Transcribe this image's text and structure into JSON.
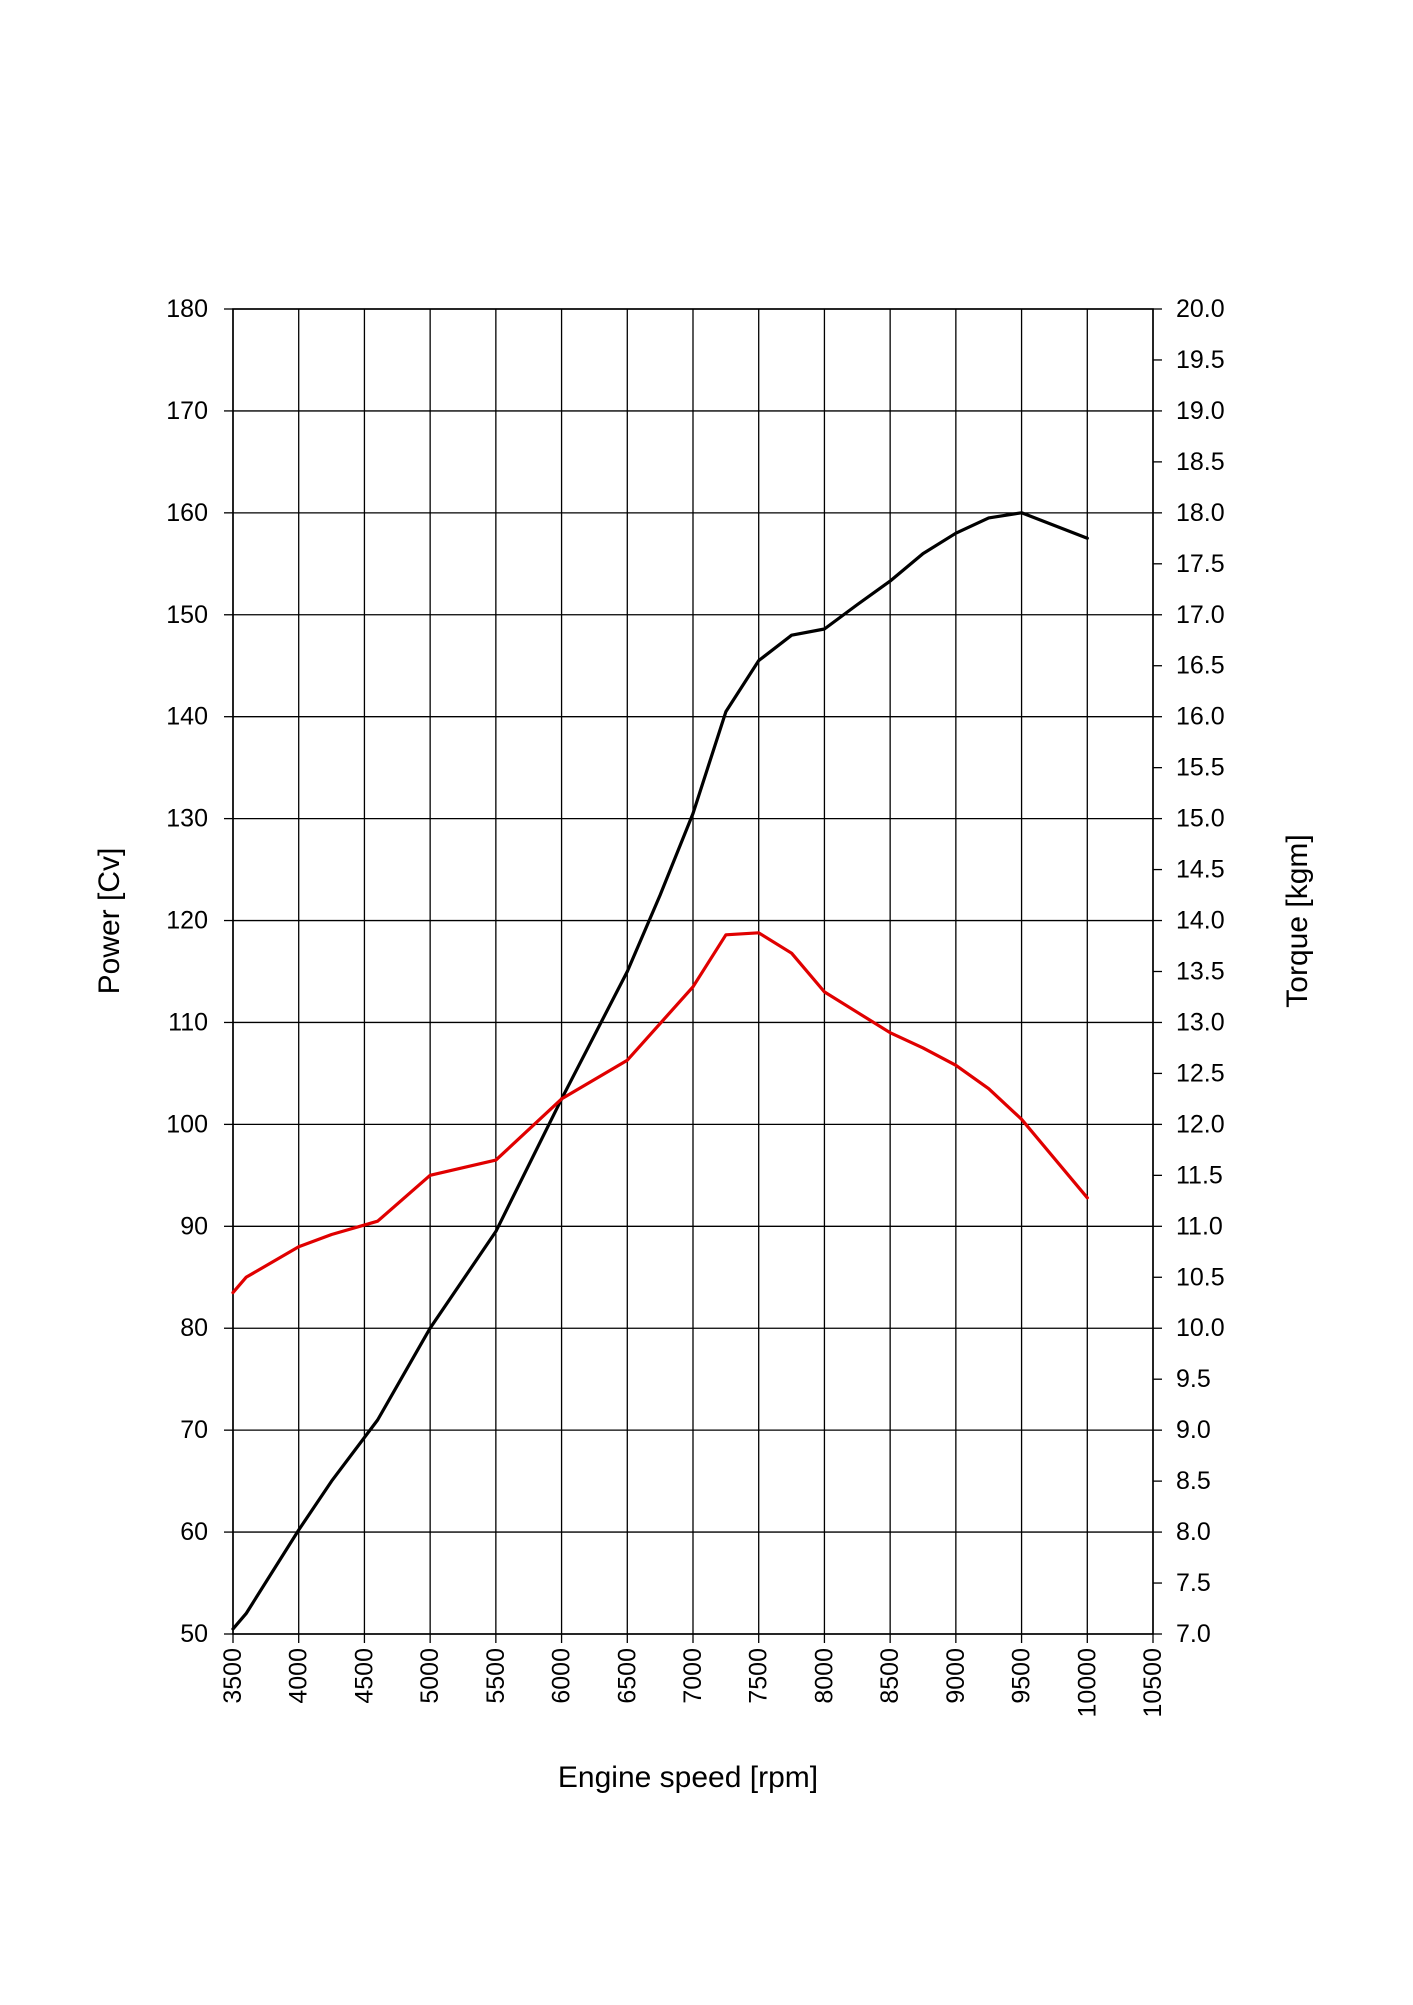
{
  "chart_data": {
    "type": "line",
    "xlabel": "Engine speed [rpm]",
    "ylabel": "Power [Cv]",
    "y2label": "Torque [kgm]",
    "xlim": [
      3500,
      10500
    ],
    "ylim": [
      50,
      180
    ],
    "y2lim": [
      7.0,
      20.0
    ],
    "x_ticks": [
      "3500",
      "4000",
      "4500",
      "5000",
      "5500",
      "6000",
      "6500",
      "7000",
      "7500",
      "8000",
      "8500",
      "9000",
      "9500",
      "10000",
      "10500"
    ],
    "y_ticks": [
      "50",
      "60",
      "70",
      "80",
      "90",
      "100",
      "110",
      "120",
      "130",
      "140",
      "150",
      "160",
      "170",
      "180"
    ],
    "y2_ticks": [
      "7.0",
      "7.5",
      "8.0",
      "8.5",
      "9.0",
      "9.5",
      "10.0",
      "10.5",
      "11.0",
      "11.5",
      "12.0",
      "12.5",
      "13.0",
      "13.5",
      "14.0",
      "14.5",
      "15.0",
      "15.5",
      "16.0",
      "16.5",
      "17.0",
      "17.5",
      "18.0",
      "18.5",
      "19.0",
      "19.5",
      "20.0"
    ],
    "grid": true,
    "series": [
      {
        "axis": "left",
        "color": "#000000",
        "x": [
          3500,
          3600,
          4000,
          4250,
          4600,
          5000,
          5500,
          6000,
          6500,
          6750,
          7000,
          7250,
          7500,
          7750,
          8000,
          8250,
          8500,
          8750,
          9000,
          9250,
          9500,
          10000
        ],
        "values": [
          50.5,
          52.0,
          60.2,
          65.0,
          71.0,
          80.0,
          89.5,
          102.5,
          115.0,
          122.5,
          130.5,
          140.5,
          145.5,
          148.0,
          148.6,
          151.0,
          153.3,
          156.0,
          158.0,
          159.5,
          160.0,
          157.5
        ]
      },
      {
        "axis": "right",
        "color": "#e00000",
        "x": [
          3500,
          3600,
          4000,
          4250,
          4600,
          5000,
          5500,
          6000,
          6500,
          7000,
          7250,
          7500,
          7750,
          8000,
          8250,
          8500,
          8750,
          9000,
          9250,
          9500,
          10000
        ],
        "values": [
          10.35,
          10.5,
          10.8,
          10.92,
          11.05,
          11.5,
          11.65,
          12.25,
          12.63,
          13.35,
          13.86,
          13.88,
          13.68,
          13.3,
          13.1,
          12.9,
          12.75,
          12.58,
          12.35,
          12.05,
          11.28
        ]
      }
    ]
  }
}
